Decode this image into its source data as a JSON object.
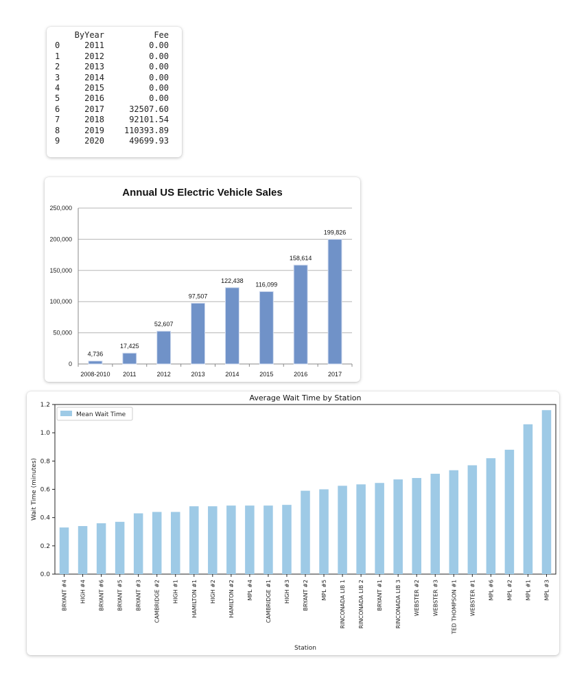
{
  "dataframe": {
    "headers": [
      "",
      "ByYear",
      "Fee"
    ],
    "rows": [
      [
        "0",
        "2011",
        "0.00"
      ],
      [
        "1",
        "2012",
        "0.00"
      ],
      [
        "2",
        "2013",
        "0.00"
      ],
      [
        "3",
        "2014",
        "0.00"
      ],
      [
        "4",
        "2015",
        "0.00"
      ],
      [
        "5",
        "2016",
        "0.00"
      ],
      [
        "6",
        "2017",
        "32507.60"
      ],
      [
        "7",
        "2018",
        "92101.54"
      ],
      [
        "8",
        "2019",
        "110393.89"
      ],
      [
        "9",
        "2020",
        "49699.93"
      ]
    ]
  },
  "chart_data": [
    {
      "type": "table",
      "columns": [
        "ByYear",
        "Fee"
      ],
      "index": [
        0,
        1,
        2,
        3,
        4,
        5,
        6,
        7,
        8,
        9
      ],
      "rows": [
        [
          2011,
          0.0
        ],
        [
          2012,
          0.0
        ],
        [
          2013,
          0.0
        ],
        [
          2014,
          0.0
        ],
        [
          2015,
          0.0
        ],
        [
          2016,
          0.0
        ],
        [
          2017,
          32507.6
        ],
        [
          2018,
          92101.54
        ],
        [
          2019,
          110393.89
        ],
        [
          2020,
          49699.93
        ]
      ]
    },
    {
      "type": "bar",
      "title": "Annual US Electric Vehicle Sales",
      "categories": [
        "2008-2010",
        "2011",
        "2012",
        "2013",
        "2014",
        "2015",
        "2016",
        "2017"
      ],
      "values": [
        4736,
        17425,
        52607,
        97507,
        122438,
        116099,
        158614,
        199826
      ],
      "data_labels": [
        "4,736",
        "17,425",
        "52,607",
        "97,507",
        "122,438",
        "116,099",
        "158,614",
        "199,826"
      ],
      "yticks": [
        "0",
        "50,000",
        "100,000",
        "150,000",
        "200,000",
        "250,000"
      ],
      "ylim": [
        0,
        250000
      ],
      "grid": true,
      "bar_color": "#7092c8",
      "xlabel": "",
      "ylabel": ""
    },
    {
      "type": "bar",
      "title": "Average Wait Time by Station",
      "xlabel": "Station",
      "ylabel": "Wait Time (minutes)",
      "categories": [
        "BRYANT #4",
        "HIGH #4",
        "BRYANT #6",
        "BRYANT #5",
        "BRYANT #3",
        "CAMBRIDGE #2",
        "HIGH #1",
        "HAMILTON #1",
        "HIGH #2",
        "HAMILTON #2",
        "MPL #4",
        "CAMBRIDGE #1",
        "HIGH #3",
        "BRYANT #2",
        "MPL #5",
        "RINCONADA LIB 1",
        "RINCONADA LIB 2",
        "BRYANT #1",
        "RINCONADA LIB 3",
        "WEBSTER #2",
        "WEBSTER #3",
        "TED THOMPSON #1",
        "WEBSTER #1",
        "MPL #6",
        "MPL #2",
        "MPL #1",
        "MPL #3"
      ],
      "series": [
        {
          "name": "Mean Wait Time",
          "values": [
            0.33,
            0.34,
            0.36,
            0.37,
            0.43,
            0.44,
            0.44,
            0.48,
            0.48,
            0.485,
            0.485,
            0.485,
            0.49,
            0.59,
            0.6,
            0.625,
            0.635,
            0.645,
            0.67,
            0.68,
            0.71,
            0.735,
            0.77,
            0.82,
            0.88,
            1.06,
            1.16
          ]
        }
      ],
      "yticks": [
        "0.0",
        "0.2",
        "0.4",
        "0.6",
        "0.8",
        "1.0",
        "1.2"
      ],
      "ylim": [
        0,
        1.2
      ],
      "grid": false,
      "legend": "top-left",
      "bar_color": "#9ecae6"
    }
  ]
}
